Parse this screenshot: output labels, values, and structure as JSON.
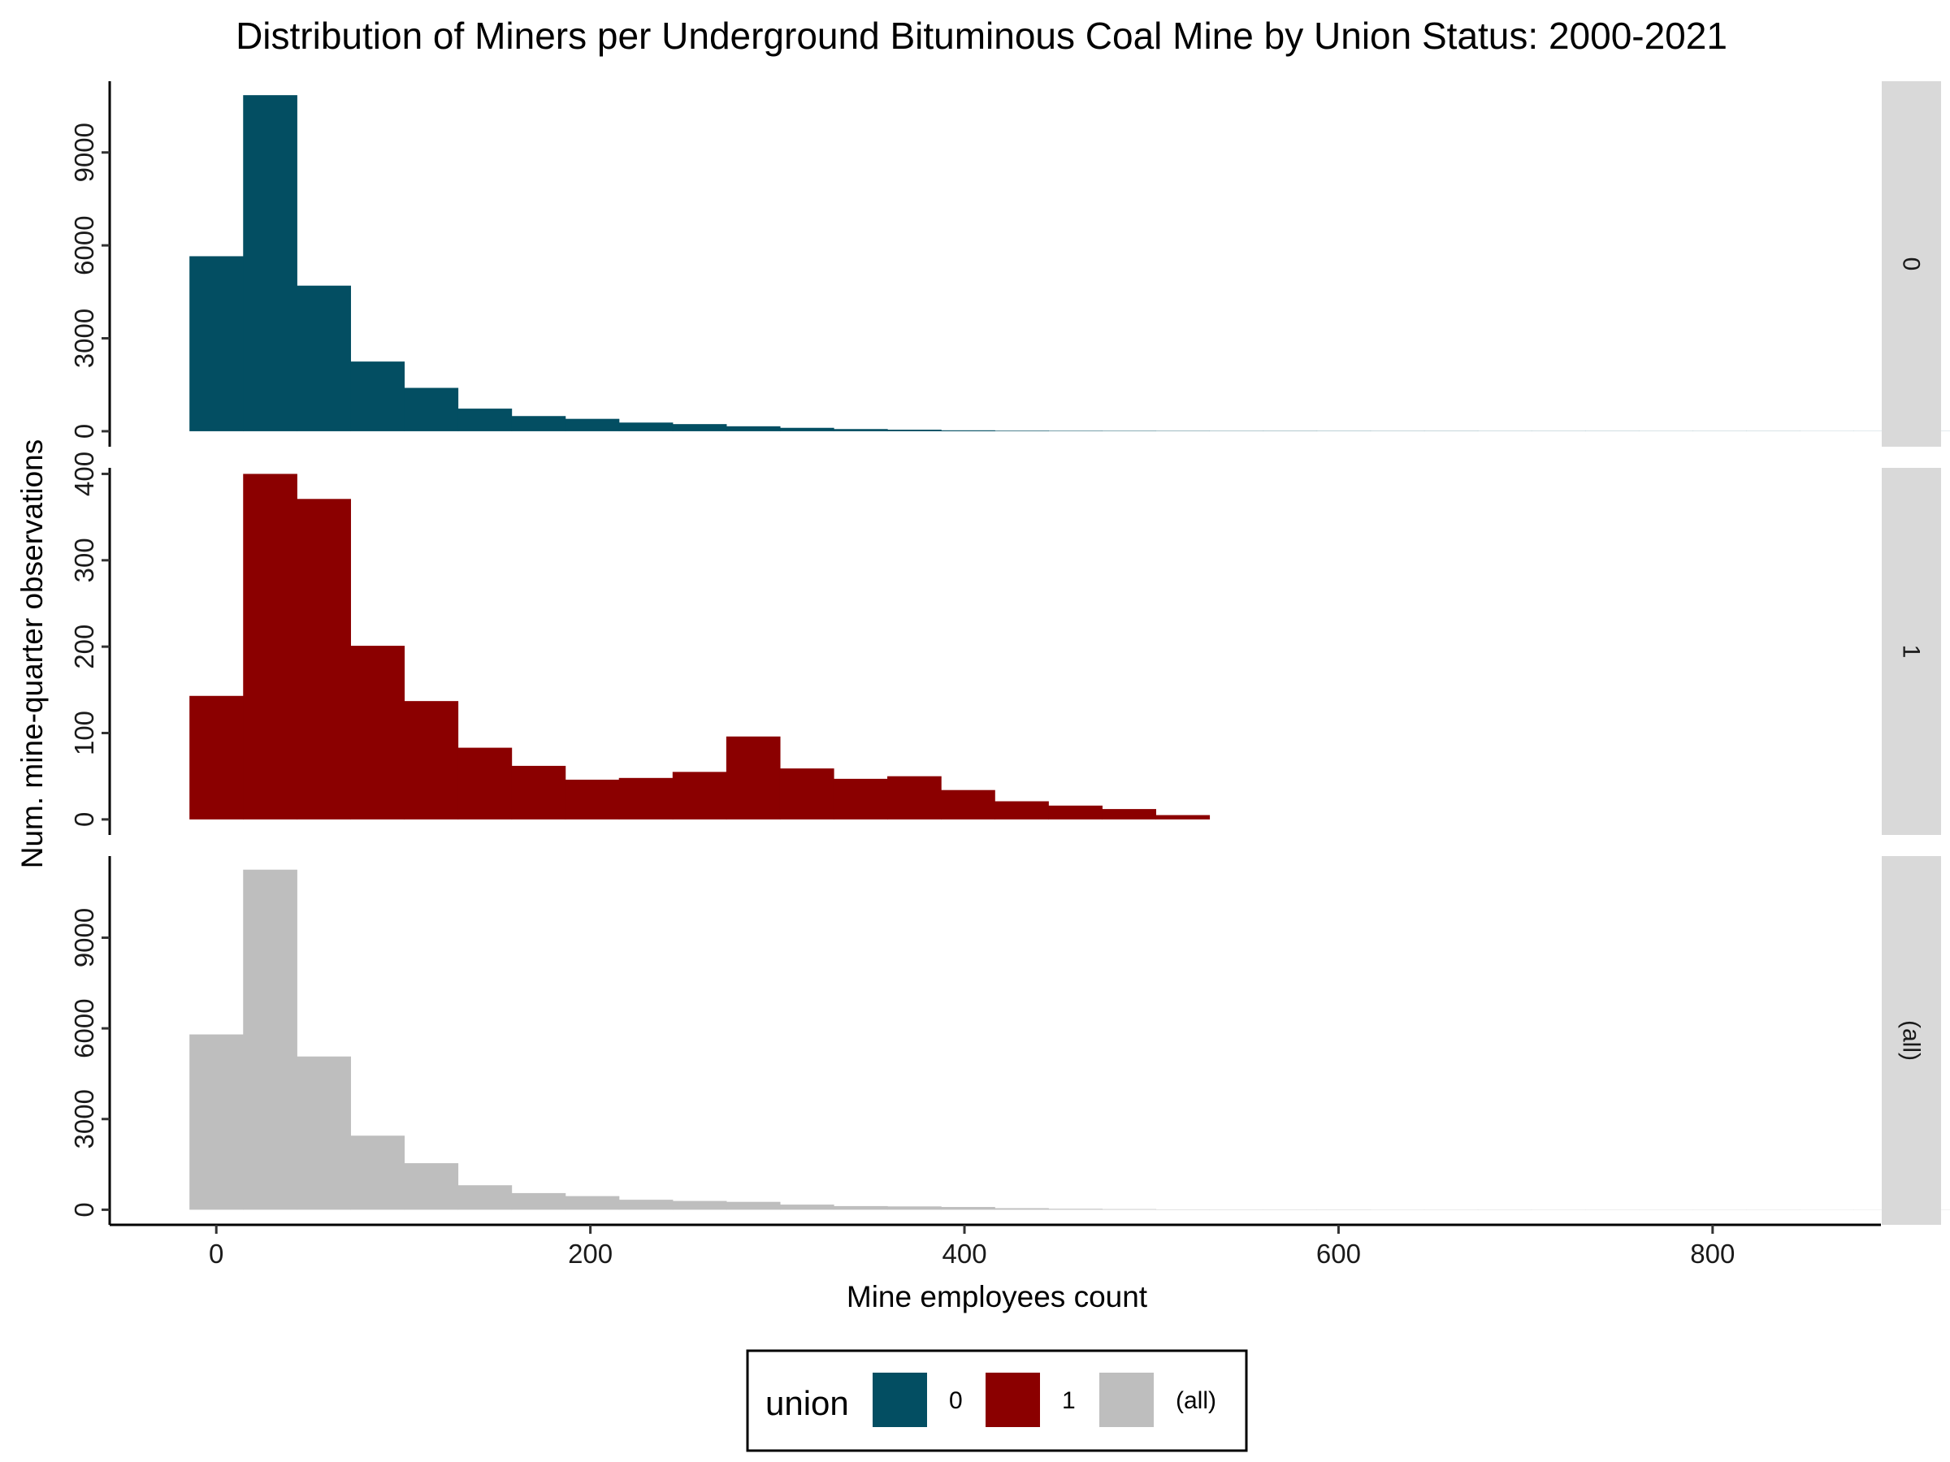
{
  "chart_data": {
    "type": "bar",
    "subtype": "faceted histogram",
    "title": "Distribution of Miners per Underground Bituminous Coal Mine by Union Status: 2000-2021",
    "xlabel": "Mine employees count",
    "ylabel": "Num. mine-quarter observations",
    "x_ticks": [
      0,
      200,
      400,
      600,
      800
    ],
    "x_range": [
      -57,
      890
    ],
    "bin_width": 28.7,
    "bin_start": -14.35,
    "grid": false,
    "legend": {
      "title": "union",
      "position": "bottom",
      "entries": [
        {
          "label": "0",
          "color": "#034E62"
        },
        {
          "label": "1",
          "color": "#8B0000"
        },
        {
          "label": "(all)",
          "color": "#BEBEBE"
        }
      ]
    },
    "facets": [
      {
        "strip_label": "0",
        "color": "#034E62",
        "y_ticks": [
          0,
          3000,
          6000,
          9000
        ],
        "ylim": [
          -500,
          11300
        ],
        "values": [
          5650,
          10850,
          4700,
          2250,
          1400,
          730,
          490,
          400,
          280,
          230,
          160,
          110,
          70,
          50,
          30,
          18,
          14,
          12,
          10,
          8,
          8,
          7,
          6,
          6,
          5,
          5,
          5,
          4,
          4,
          4,
          3,
          3,
          3,
          3,
          3,
          3,
          3,
          3,
          3,
          3,
          2,
          2,
          2,
          2
        ]
      },
      {
        "strip_label": "1",
        "color": "#8B0000",
        "y_ticks": [
          0,
          100,
          200,
          300,
          400
        ],
        "ylim": [
          -18,
          407
        ],
        "values": [
          143,
          400,
          371,
          201,
          137,
          83,
          62,
          46,
          48,
          55,
          96,
          59,
          47,
          50,
          34,
          21,
          16,
          12,
          5
        ]
      },
      {
        "strip_label": "(all)",
        "color": "#BEBEBE",
        "y_ticks": [
          0,
          3000,
          6000,
          9000
        ],
        "ylim": [
          -500,
          11700
        ],
        "values": [
          5800,
          11250,
          5070,
          2450,
          1540,
          810,
          550,
          450,
          330,
          290,
          260,
          170,
          120,
          110,
          90,
          50,
          30,
          20,
          12,
          10,
          10,
          10,
          8,
          8,
          8,
          7,
          7,
          6,
          6,
          6,
          5,
          5,
          5,
          5,
          5,
          5,
          5,
          5,
          5,
          5,
          4,
          4,
          4,
          4
        ]
      }
    ]
  }
}
